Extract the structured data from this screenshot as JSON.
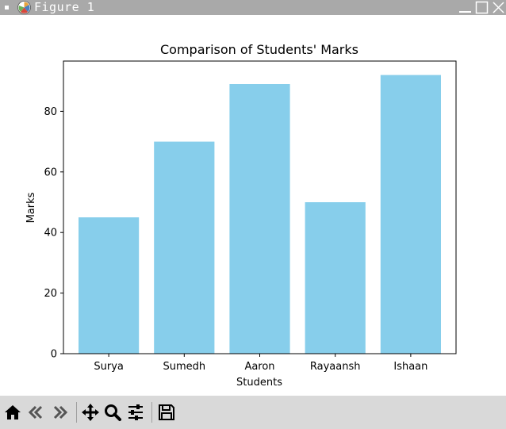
{
  "window": {
    "title": "Figure 1"
  },
  "toolbar": {
    "buttons": [
      "home-icon",
      "back-icon",
      "forward-icon",
      "pan-icon",
      "zoom-icon",
      "configure-subplots-icon",
      "save-icon"
    ]
  },
  "colors": {
    "bar": "#87ceeb",
    "titlebar": "#a9a9a9",
    "toolbar": "#d9d9d9"
  },
  "chart_data": {
    "type": "bar",
    "title": "Comparison of Students' Marks",
    "xlabel": "Students",
    "ylabel": "Marks",
    "categories": [
      "Surya",
      "Sumedh",
      "Aaron",
      "Rayaansh",
      "Ishaan"
    ],
    "values": [
      45,
      70,
      89,
      50,
      92
    ],
    "ylim": [
      0,
      96.6
    ],
    "yticks": [
      0,
      20,
      40,
      60,
      80
    ],
    "grid": false
  }
}
